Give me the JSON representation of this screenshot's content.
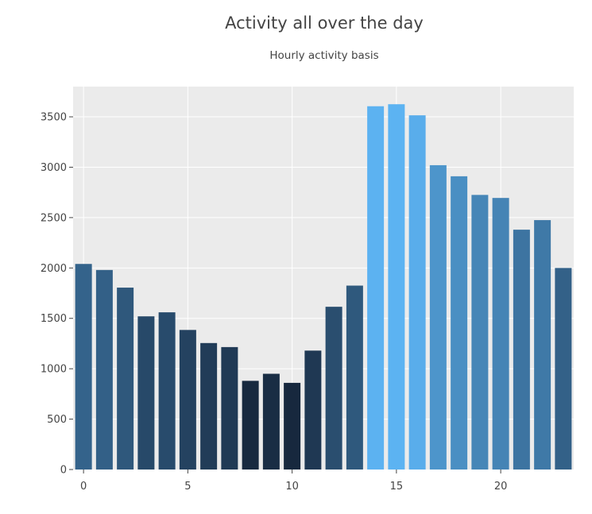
{
  "chart_data": {
    "type": "bar",
    "title": "Activity all over the day",
    "subtitle": "Hourly activity basis",
    "xlabel": "",
    "ylabel": "",
    "x": [
      0,
      1,
      2,
      3,
      4,
      5,
      6,
      7,
      8,
      9,
      10,
      11,
      12,
      13,
      14,
      15,
      16,
      17,
      18,
      19,
      20,
      21,
      22,
      23
    ],
    "values": [
      2040,
      1980,
      1805,
      1520,
      1560,
      1385,
      1255,
      1215,
      880,
      950,
      860,
      1180,
      1615,
      1825,
      3605,
      3625,
      3515,
      3020,
      2910,
      2725,
      2695,
      2380,
      2475,
      2000
    ],
    "x_ticks": [
      0,
      5,
      10,
      15,
      20
    ],
    "y_ticks": [
      0,
      500,
      1000,
      1500,
      2000,
      2500,
      3000,
      3500
    ],
    "ylim": [
      0,
      3800
    ],
    "xlim": [
      -0.5,
      23.5
    ],
    "grid": true,
    "color_scale": {
      "low": "#17283e",
      "high": "#5cb3f2"
    }
  }
}
